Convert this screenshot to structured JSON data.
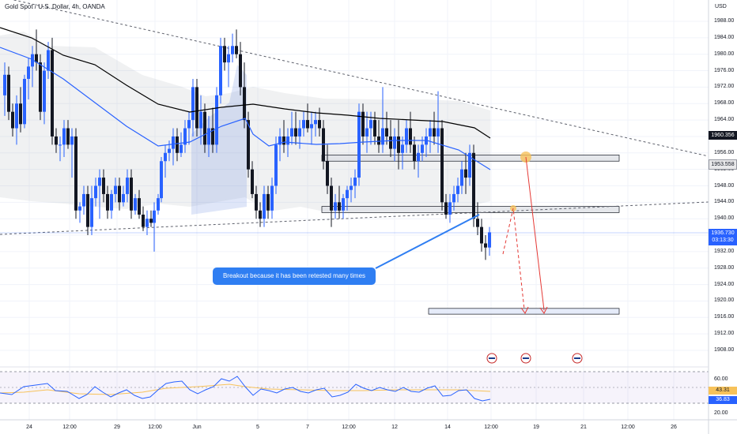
{
  "header": {
    "symbol_title": "Gold Spot / U.S. Dollar, 4h, OANDA",
    "price_scale_unit": "USD"
  },
  "price_axis": {
    "ticks": [
      "1988.00",
      "1984.00",
      "1980.00",
      "1976.00",
      "1972.00",
      "1968.00",
      "1964.00",
      "1960.00",
      "1956.00",
      "1952.00",
      "1948.00",
      "1944.00",
      "1940.00",
      "1936.00",
      "1932.00",
      "1928.00",
      "1924.00",
      "1920.00",
      "1916.00",
      "1912.00",
      "1908.00"
    ]
  },
  "badges": {
    "ema_value": "1960.356",
    "level_value": "1953.558",
    "last_price": "1936.730",
    "countdown": "03:13:30"
  },
  "rsi_axis": {
    "upper": "60.00",
    "lower": "20.00",
    "ma_value": "43.31",
    "rsi_value": "36.83"
  },
  "time_axis": {
    "labels": [
      "24",
      "12:00",
      "29",
      "12:00",
      "Jun",
      "5",
      "7",
      "12:00",
      "12",
      "14",
      "12:00",
      "19",
      "21",
      "12:00",
      "26"
    ]
  },
  "annotation": {
    "text": "Breakout because it has been retested many times"
  },
  "colors": {
    "bull_candle": "#2962ff",
    "bear_candle": "#131722",
    "ema": "#2962ff",
    "ma_long": "#000000",
    "projection_arrow": "#e53935",
    "callout": "#2f7ef2",
    "highlight": "#f7c25a"
  },
  "chart_data": {
    "type": "candlestick",
    "symbol": "Gold Spot / U.S. Dollar, 4h, OANDA",
    "ylim": [
      1904,
      1992
    ],
    "last_price": 1936.73,
    "resistance_zone": [
      1954,
      1955.5
    ],
    "support_zone": [
      1941.5,
      1943
    ],
    "target_zone": [
      1916.8,
      1918.2
    ],
    "rsi": {
      "upper": 60,
      "lower": 20,
      "ma": 43.31,
      "value": 36.83
    }
  }
}
